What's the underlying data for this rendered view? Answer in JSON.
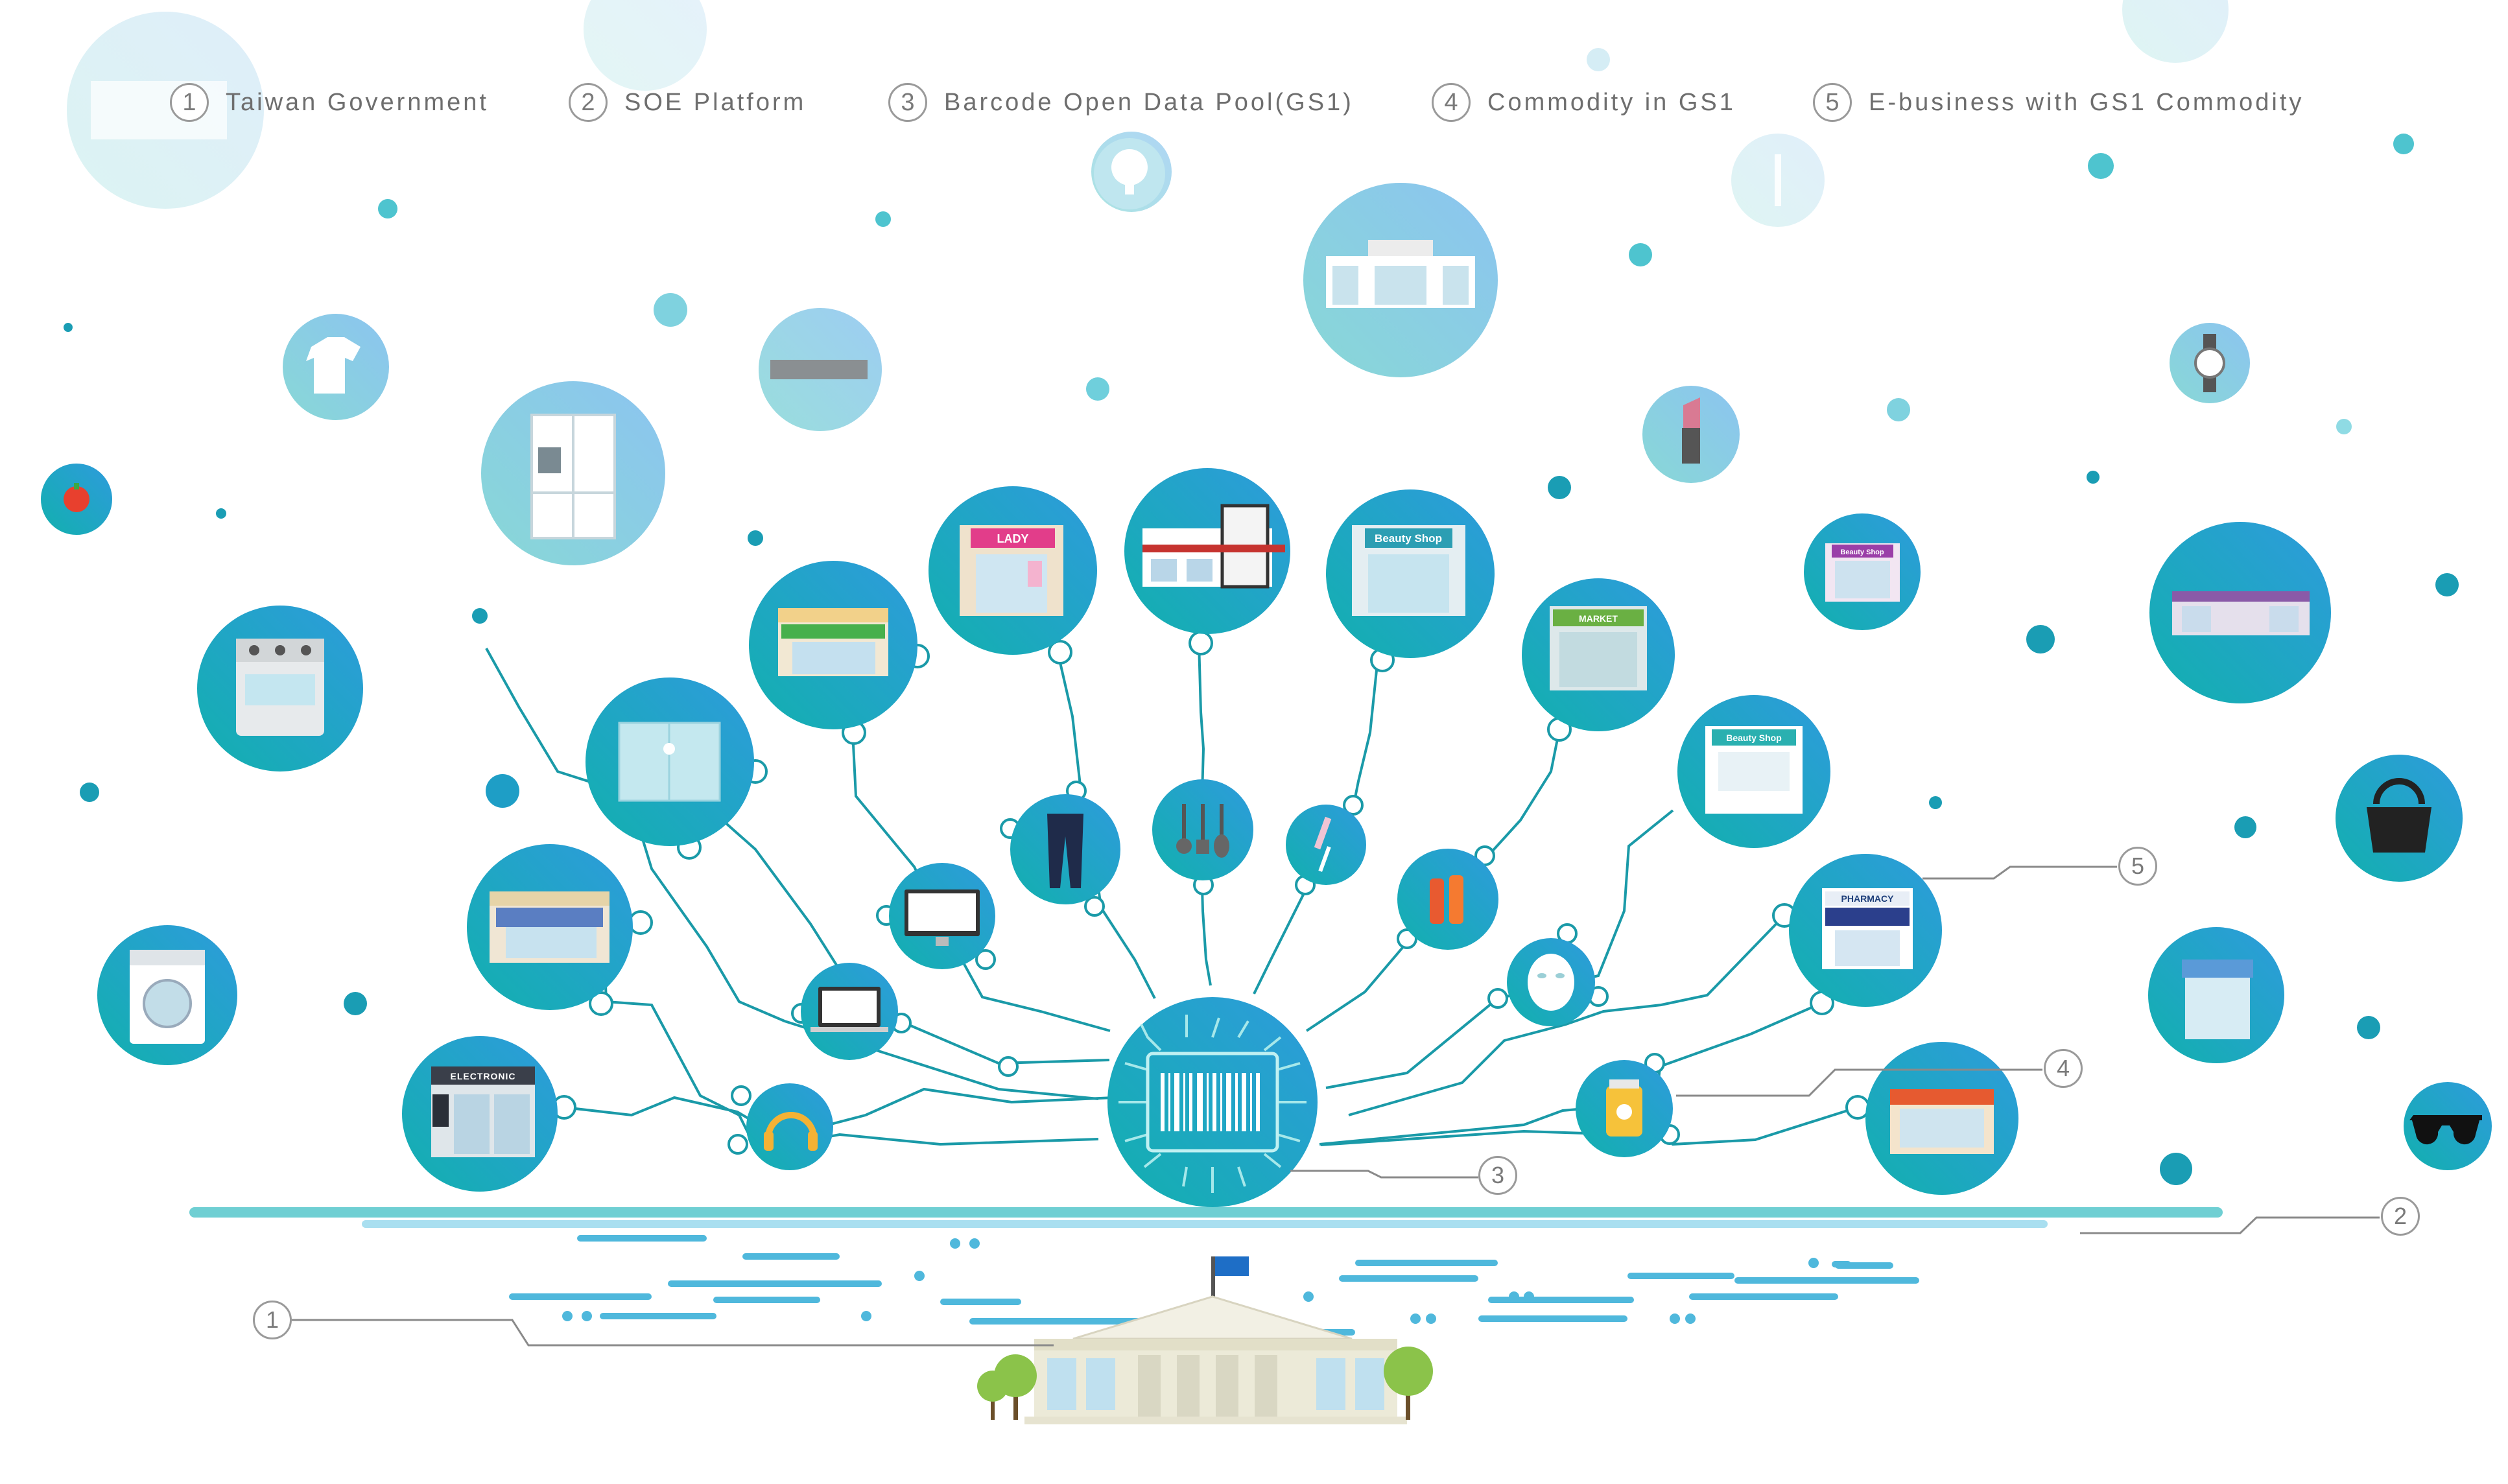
{
  "legend": [
    {
      "num": "1",
      "label": "Taiwan  Government"
    },
    {
      "num": "2",
      "label": "SOE  Platform"
    },
    {
      "num": "3",
      "label": "Barcode  Open  Data  Pool(GS1)"
    },
    {
      "num": "4",
      "label": "Commodity  in  GS1"
    },
    {
      "num": "5",
      "label": "E-business  with  GS1  Commodity"
    }
  ],
  "callouts": {
    "c1": "1",
    "c2": "2",
    "c3": "3",
    "c4": "4",
    "c5": "5"
  },
  "signs": {
    "lady": "LADY",
    "beauty_top": "Beauty Shop",
    "market": "MARKET",
    "beauty_small": "Beauty Shop",
    "beauty_right": "Beauty Shop",
    "pharmacy": "PHARMACY",
    "electronic": "ELECTRONIC"
  },
  "colors": {
    "teal": "#17b3b5",
    "blue": "#2e9fd8",
    "line": "#1a9aa8",
    "platform": "#6fcfd3",
    "stream": "#4fb8dc",
    "bubble": "#d3eef5"
  },
  "icons": {
    "hub": "chip-barcode-icon",
    "government": "government-building-icon"
  }
}
